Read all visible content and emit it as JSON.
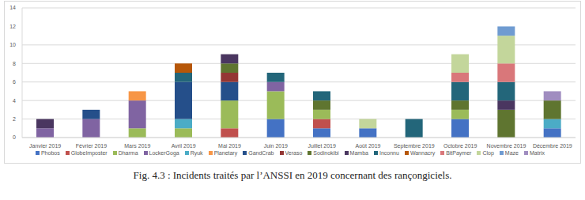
{
  "chart_data": {
    "type": "bar",
    "title": "Fig. 4.3 : Incidents traités par l’ANSSI en 2019 concernant des rançongiciels.",
    "stacked": true,
    "grid": true,
    "legend": "bottom",
    "categories": [
      "Janvier 2019",
      "Février 2019",
      "Mars 2019",
      "Avril 2019",
      "Mai 2019",
      "Juin 2019",
      "Juillet 2019",
      "Août 2019",
      "Septembre 2019",
      "Octobre 2019",
      "Novembre 2019",
      "Décembre 2019"
    ],
    "ylim": [
      0,
      14
    ],
    "yticks": [
      0,
      2,
      4,
      6,
      8,
      10,
      12,
      14
    ],
    "series": [
      {
        "name": "Phobos",
        "color": "#4472c4",
        "values": [
          0,
          0,
          0,
          0,
          0,
          2,
          1,
          1,
          0,
          2,
          0,
          1
        ]
      },
      {
        "name": "GlobeImposter",
        "color": "#c0504d",
        "values": [
          0,
          0,
          0,
          0,
          1,
          0,
          1,
          0,
          0,
          0,
          0,
          0
        ]
      },
      {
        "name": "Dharma",
        "color": "#9bbb59",
        "values": [
          0,
          0,
          1,
          1,
          3,
          3,
          1,
          0,
          0,
          1,
          0,
          0
        ]
      },
      {
        "name": "LockerGoga",
        "color": "#8064a2",
        "values": [
          1,
          2,
          3,
          0,
          0,
          1,
          0,
          0,
          0,
          0,
          0,
          0
        ]
      },
      {
        "name": "Ryuk",
        "color": "#4bacc6",
        "values": [
          0,
          0,
          0,
          1,
          0,
          0,
          0,
          0,
          0,
          0,
          0,
          1
        ]
      },
      {
        "name": "Planetary",
        "color": "#f79646",
        "values": [
          0,
          0,
          1,
          0,
          0,
          0,
          0,
          0,
          0,
          0,
          0,
          0
        ]
      },
      {
        "name": "GandCrab",
        "color": "#254f8a",
        "values": [
          0,
          1,
          0,
          4,
          2,
          0,
          0,
          0,
          0,
          0,
          0,
          0
        ]
      },
      {
        "name": "Veraso",
        "color": "#943634",
        "values": [
          0,
          0,
          0,
          0,
          1,
          0,
          0,
          0,
          0,
          0,
          0,
          0
        ]
      },
      {
        "name": "Sodinokibi",
        "color": "#5f7530",
        "values": [
          0,
          0,
          0,
          0,
          1,
          0,
          1,
          0,
          0,
          1,
          3,
          2
        ]
      },
      {
        "name": "Mamba",
        "color": "#4a3660",
        "values": [
          1,
          0,
          0,
          0,
          1,
          0,
          0,
          0,
          0,
          0,
          1,
          0
        ]
      },
      {
        "name": "Inconnu",
        "color": "#23667a",
        "values": [
          0,
          0,
          0,
          1,
          0,
          1,
          1,
          0,
          2,
          2,
          2,
          0
        ]
      },
      {
        "name": "Wannacry",
        "color": "#b65708",
        "values": [
          0,
          0,
          0,
          1,
          0,
          0,
          0,
          0,
          0,
          0,
          0,
          0
        ]
      },
      {
        "name": "BitPaymer",
        "color": "#d9777a",
        "values": [
          0,
          0,
          0,
          0,
          0,
          0,
          0,
          0,
          0,
          1,
          2,
          0
        ]
      },
      {
        "name": "Clop",
        "color": "#c3d69b",
        "values": [
          0,
          0,
          0,
          0,
          0,
          0,
          0,
          1,
          0,
          2,
          3,
          0
        ]
      },
      {
        "name": "Maze",
        "color": "#6f9bd1",
        "values": [
          0,
          0,
          0,
          0,
          0,
          0,
          0,
          0,
          0,
          0,
          1,
          0
        ]
      },
      {
        "name": "Matrix",
        "color": "#a08dc0",
        "values": [
          0,
          0,
          0,
          0,
          0,
          0,
          0,
          0,
          0,
          0,
          0,
          1
        ]
      }
    ]
  }
}
